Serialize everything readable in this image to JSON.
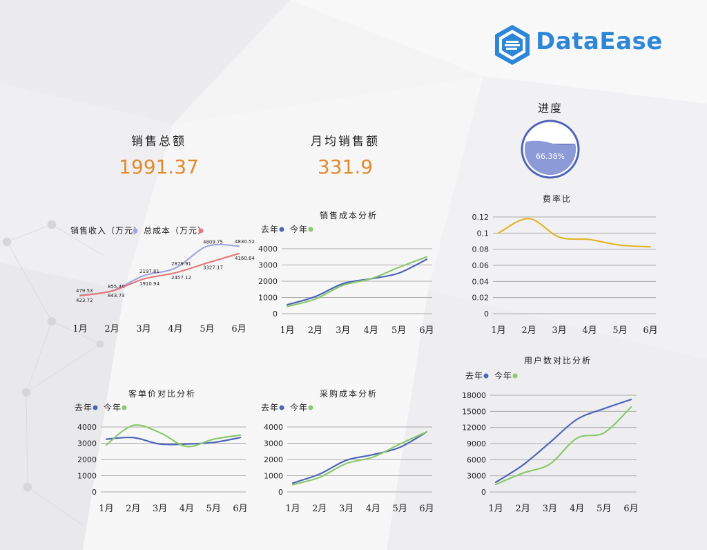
{
  "brand": {
    "name": "DataEase",
    "logo_color": "#2e86d6"
  },
  "kpis": [
    {
      "label": "销售总额",
      "value": "1991.37"
    },
    {
      "label": "月均销售额",
      "value": "331.9"
    }
  ],
  "progress": {
    "label": "进度",
    "value_text": "66.38%",
    "fraction": 0.6638,
    "color": "#4e64b8"
  },
  "colors": {
    "blue": "#4e64b8",
    "green": "#8cc86c",
    "orange_value": "#e38a2e",
    "yellow": "#e0b52a",
    "purple_line": "#9fa7e0",
    "red_line": "#e37a7a"
  },
  "chart_data": [
    {
      "id": "revenue-cost",
      "type": "line",
      "title": "",
      "legend": [
        "销售收入（万元）",
        "总成本（万元）"
      ],
      "categories": [
        "1月",
        "2月",
        "3月",
        "4月",
        "5月",
        "6月"
      ],
      "series": [
        {
          "name": "销售收入（万元）",
          "color": "#9fa7e0",
          "values": [
            479.53,
            855.48,
            2197.81,
            2879.91,
            4809.75,
            4830.52
          ],
          "labels": [
            "479.53",
            "855.48",
            "2197.81",
            "2879.91",
            "4809.75",
            "4830.52"
          ]
        },
        {
          "name": "总成本（万元）",
          "color": "#e37a7a",
          "values": [
            423.72,
            843.73,
            1910.94,
            2457.12,
            3327.17,
            4160.64
          ],
          "labels": [
            "423.72",
            "843.73",
            "1910.94",
            "2457.12",
            "3327.17",
            "4160.64"
          ]
        }
      ],
      "ylim": [
        0,
        5200
      ],
      "yticks": [],
      "grid": false
    },
    {
      "id": "sales-cost",
      "type": "line",
      "title": "销售成本分析",
      "legend": [
        "去年",
        "今年"
      ],
      "categories": [
        "1月",
        "2月",
        "3月",
        "4月",
        "5月",
        "6月"
      ],
      "series": [
        {
          "name": "去年",
          "color": "#4e64b8",
          "values": [
            550,
            1050,
            1850,
            2150,
            2500,
            3350
          ]
        },
        {
          "name": "今年",
          "color": "#8cc86c",
          "values": [
            450,
            900,
            1750,
            2150,
            2850,
            3500
          ]
        }
      ],
      "ylim": [
        0,
        4000
      ],
      "yticks": [
        "0",
        "1000",
        "2000",
        "3000",
        "4000"
      ],
      "grid": true
    },
    {
      "id": "fee-rate",
      "type": "line",
      "title": "费率比",
      "legend": [],
      "categories": [
        "1月",
        "2月",
        "3月",
        "4月",
        "5月",
        "6月"
      ],
      "series": [
        {
          "name": "",
          "color": "#e0b52a",
          "values": [
            0.1,
            0.118,
            0.095,
            0.092,
            0.085,
            0.083
          ]
        }
      ],
      "ylim": [
        0,
        0.12
      ],
      "yticks": [
        "0",
        "0.02",
        "0.04",
        "0.06",
        "0.08",
        "0.1",
        "0.12"
      ],
      "grid": true
    },
    {
      "id": "avg-order",
      "type": "line",
      "title": "客单价对比分析",
      "legend": [
        "去年",
        "今年"
      ],
      "categories": [
        "1月",
        "2月",
        "3月",
        "4月",
        "5月",
        "6月"
      ],
      "series": [
        {
          "name": "去年",
          "color": "#4e64b8",
          "values": [
            3250,
            3350,
            2950,
            2950,
            3050,
            3350
          ]
        },
        {
          "name": "今年",
          "color": "#8cc86c",
          "values": [
            2900,
            4100,
            3650,
            2800,
            3250,
            3500
          ]
        }
      ],
      "ylim": [
        0,
        4000
      ],
      "yticks": [
        "0",
        "1000",
        "2000",
        "3000",
        "4000"
      ],
      "grid": true
    },
    {
      "id": "purchase-cost",
      "type": "line",
      "title": "采购成本分析",
      "legend": [
        "去年",
        "今年"
      ],
      "categories": [
        "1月",
        "2月",
        "3月",
        "4月",
        "5月",
        "6月"
      ],
      "series": [
        {
          "name": "去年",
          "color": "#4e64b8",
          "values": [
            550,
            1100,
            1950,
            2300,
            2750,
            3700
          ]
        },
        {
          "name": "今年",
          "color": "#8cc86c",
          "values": [
            450,
            900,
            1750,
            2150,
            2950,
            3700
          ]
        }
      ],
      "ylim": [
        0,
        4000
      ],
      "yticks": [
        "0",
        "1000",
        "2000",
        "3000",
        "4000"
      ],
      "grid": true
    },
    {
      "id": "user-count",
      "type": "line",
      "title": "用户数对比分析",
      "legend": [
        "去年",
        "今年"
      ],
      "categories": [
        "1月",
        "2月",
        "3月",
        "4月",
        "5月",
        "6月"
      ],
      "series": [
        {
          "name": "去年",
          "color": "#4e64b8",
          "values": [
            1800,
            5000,
            9200,
            13500,
            15500,
            17200
          ]
        },
        {
          "name": "今年",
          "color": "#8cc86c",
          "values": [
            1400,
            3500,
            5200,
            10000,
            11000,
            15800
          ]
        }
      ],
      "ylim": [
        0,
        18000
      ],
      "yticks": [
        "0",
        "3000",
        "6000",
        "9000",
        "12000",
        "15000",
        "18000"
      ],
      "grid": true
    }
  ]
}
